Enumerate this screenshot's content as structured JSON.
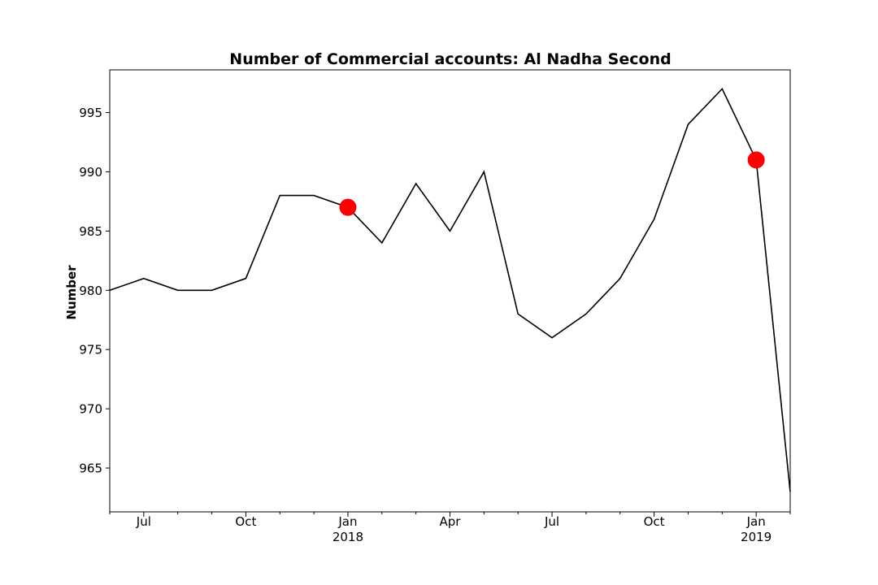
{
  "chart_data": {
    "type": "line",
    "title": "Number of Commercial accounts: Al Nadha Second",
    "xlabel": "",
    "ylabel": "Number",
    "ylim": [
      961.3,
      998.6
    ],
    "yticks": [
      965,
      970,
      975,
      980,
      985,
      990,
      995
    ],
    "grid": false,
    "x": [
      "2017-06",
      "2017-07",
      "2017-08",
      "2017-09",
      "2017-10",
      "2017-11",
      "2017-12",
      "2018-01",
      "2018-02",
      "2018-03",
      "2018-04",
      "2018-05",
      "2018-06",
      "2018-07",
      "2018-08",
      "2018-09",
      "2018-10",
      "2018-11",
      "2018-12",
      "2019-01",
      "2019-02"
    ],
    "series": [
      {
        "values": [
          980,
          981,
          980,
          980,
          981,
          988,
          988,
          987,
          984,
          989,
          985,
          990,
          978,
          976,
          978,
          981,
          986,
          994,
          997,
          991,
          963
        ],
        "color": "#000000"
      }
    ],
    "highlights": [
      {
        "x": "2018-01",
        "value": 987,
        "color": "#ff0000"
      },
      {
        "x": "2019-01",
        "value": 991,
        "color": "#ff0000"
      }
    ],
    "xticks_major": [
      {
        "x": "2017-07",
        "label": "Jul",
        "sublabel": ""
      },
      {
        "x": "2017-10",
        "label": "Oct",
        "sublabel": ""
      },
      {
        "x": "2018-01",
        "label": "Jan",
        "sublabel": "2018"
      },
      {
        "x": "2018-04",
        "label": "Apr",
        "sublabel": ""
      },
      {
        "x": "2018-07",
        "label": "Jul",
        "sublabel": ""
      },
      {
        "x": "2018-10",
        "label": "Oct",
        "sublabel": ""
      },
      {
        "x": "2019-01",
        "label": "Jan",
        "sublabel": "2019"
      }
    ]
  }
}
